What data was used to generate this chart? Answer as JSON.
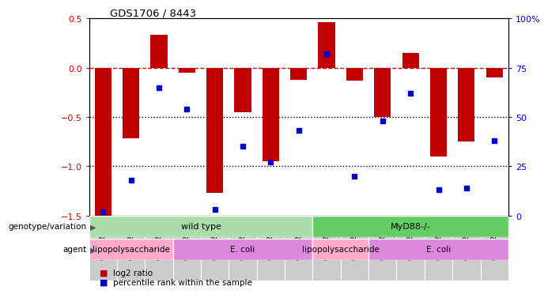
{
  "title": "GDS1706 / 8443",
  "samples": [
    "GSM22617",
    "GSM22619",
    "GSM22621",
    "GSM22623",
    "GSM22633",
    "GSM22635",
    "GSM22637",
    "GSM22639",
    "GSM22626",
    "GSM22628",
    "GSM22630",
    "GSM22641",
    "GSM22643",
    "GSM22645",
    "GSM22647"
  ],
  "log2_ratio": [
    -1.5,
    -0.72,
    0.33,
    -0.05,
    -1.27,
    -0.45,
    -0.95,
    -0.12,
    0.46,
    -0.13,
    -0.5,
    0.15,
    -0.9,
    -0.75,
    -0.1
  ],
  "percentile": [
    2,
    18,
    65,
    54,
    3,
    35,
    27,
    43,
    82,
    20,
    48,
    62,
    13,
    14,
    38
  ],
  "ylim_left": [
    -1.5,
    0.5
  ],
  "ylim_right": [
    0,
    100
  ],
  "bar_color": "#C00000",
  "dot_color": "#0000CD",
  "ref_line_color": "#CC0000",
  "dotted_line_color": "#000000",
  "genotype_groups": [
    {
      "label": "wild type",
      "start": 0,
      "end": 8,
      "color": "#AADDAA"
    },
    {
      "label": "MyD88-/-",
      "start": 8,
      "end": 15,
      "color": "#66CC66"
    }
  ],
  "agent_groups": [
    {
      "label": "lipopolysaccharide",
      "start": 0,
      "end": 3,
      "color": "#FFAACC"
    },
    {
      "label": "E. coli",
      "start": 3,
      "end": 8,
      "color": "#DD88DD"
    },
    {
      "label": "lipopolysaccharide",
      "start": 8,
      "end": 10,
      "color": "#FFAACC"
    },
    {
      "label": "E. coli",
      "start": 10,
      "end": 15,
      "color": "#DD88DD"
    }
  ],
  "legend_items": [
    {
      "label": "log2 ratio",
      "color": "#C00000"
    },
    {
      "label": "percentile rank within the sample",
      "color": "#0000CD"
    }
  ],
  "label_genotype": "genotype/variation",
  "label_agent": "agent",
  "yticks_left": [
    -1.5,
    -1.0,
    -0.5,
    0,
    0.5
  ],
  "yticks_right": [
    0,
    25,
    50,
    75,
    100
  ],
  "ytick_right_labels": [
    "0",
    "25",
    "50",
    "75",
    "100%"
  ]
}
